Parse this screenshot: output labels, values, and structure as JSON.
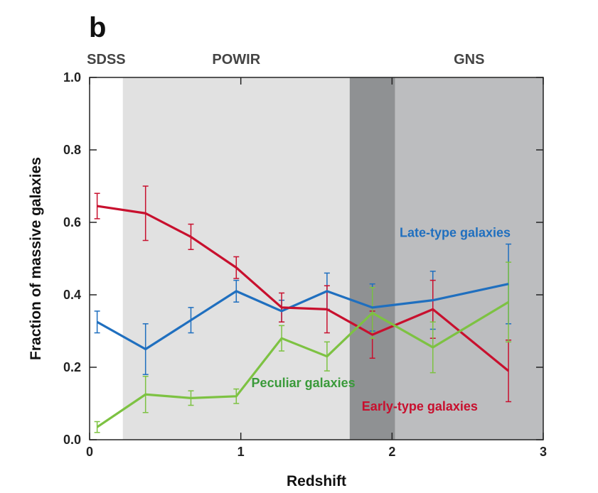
{
  "panel_label": "b",
  "chart_data": {
    "type": "line",
    "xlabel": "Redshift",
    "ylabel": "Fraction of massive galaxies",
    "xlim": [
      0,
      3
    ],
    "ylim": [
      0,
      1
    ],
    "x_ticks": [
      0,
      1,
      2,
      3
    ],
    "x_tick_labels": [
      "0",
      "1",
      "2",
      "3"
    ],
    "y_ticks": [
      0,
      0.2,
      0.4,
      0.6,
      0.8,
      1.0
    ],
    "y_tick_labels": [
      "0.0",
      "0.2",
      "0.4",
      "0.6",
      "0.8",
      "1.0"
    ],
    "grid": false,
    "regions": [
      {
        "label": "SDSS",
        "x_range": [
          0,
          0.22
        ],
        "color": "#ffffff"
      },
      {
        "label": "POWIR",
        "x_range": [
          0.22,
          1.72
        ],
        "color": "#e1e1e1"
      },
      {
        "label": "",
        "x_range": [
          1.72,
          2.02
        ],
        "color": "#8f9193"
      },
      {
        "label": "GNS",
        "x_range": [
          2.02,
          3.0
        ],
        "color": "#bcbdbf"
      }
    ],
    "series": [
      {
        "name": "Late-type galaxies",
        "color": "#1f6fbf",
        "x": [
          0.05,
          0.37,
          0.67,
          0.97,
          1.27,
          1.57,
          1.87,
          2.27,
          2.77
        ],
        "y": [
          0.325,
          0.25,
          0.33,
          0.41,
          0.355,
          0.41,
          0.365,
          0.385,
          0.43
        ],
        "err": [
          0.03,
          0.07,
          0.035,
          0.03,
          0.03,
          0.05,
          0.065,
          0.08,
          0.11
        ]
      },
      {
        "name": "Early-type galaxies",
        "color": "#c8102e",
        "x": [
          0.05,
          0.37,
          0.67,
          0.97,
          1.27,
          1.57,
          1.87,
          2.27,
          2.77
        ],
        "y": [
          0.645,
          0.625,
          0.56,
          0.475,
          0.365,
          0.36,
          0.29,
          0.36,
          0.19
        ],
        "err": [
          0.035,
          0.075,
          0.035,
          0.03,
          0.04,
          0.065,
          0.065,
          0.08,
          0.085
        ]
      },
      {
        "name": "Peculiar galaxies",
        "color": "#7dc242",
        "x": [
          0.05,
          0.37,
          0.67,
          0.97,
          1.27,
          1.57,
          1.87,
          2.27,
          2.77
        ],
        "y": [
          0.035,
          0.125,
          0.115,
          0.12,
          0.28,
          0.23,
          0.35,
          0.255,
          0.38
        ],
        "err": [
          0.015,
          0.05,
          0.02,
          0.02,
          0.035,
          0.04,
          0.07,
          0.07,
          0.11
        ]
      }
    ],
    "annotations": [
      {
        "text": "Late-type galaxies",
        "color": "#1f6fbf",
        "x": 2.05,
        "y": 0.56
      },
      {
        "text": "Peculiar galaxies",
        "color": "#3a9a3a",
        "x": 1.07,
        "y": 0.145
      },
      {
        "text": "Early-type galaxies",
        "color": "#c8102e",
        "x": 1.8,
        "y": 0.08
      }
    ]
  }
}
